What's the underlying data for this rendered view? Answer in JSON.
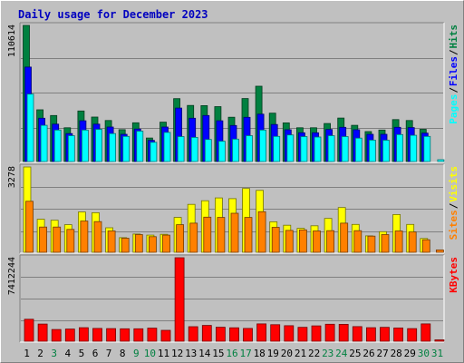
{
  "chart_title": "Daily usage for December 2023",
  "chart_data": [
    {
      "type": "bar",
      "name": "hits-files-pages",
      "max_label": "110614",
      "ylim": [
        0,
        110614
      ],
      "grid": true,
      "legend": [
        "Pages",
        "Files",
        "Hits"
      ],
      "categories": [
        "1",
        "2",
        "3",
        "4",
        "5",
        "6",
        "7",
        "8",
        "9",
        "10",
        "11",
        "12",
        "13",
        "14",
        "15",
        "16",
        "17",
        "18",
        "19",
        "20",
        "21",
        "22",
        "23",
        "24",
        "25",
        "26",
        "27",
        "28",
        "29",
        "30",
        "31"
      ],
      "series": [
        {
          "name": "Hits",
          "color": "#008040",
          "values": [
            110614,
            42000,
            37400,
            27400,
            41100,
            36100,
            33300,
            25900,
            31500,
            19100,
            32000,
            51100,
            45600,
            45400,
            44600,
            36000,
            51200,
            61200,
            39300,
            31400,
            27400,
            27400,
            30900,
            35300,
            29400,
            24300,
            25600,
            34100,
            33300,
            26200,
            0
          ]
        },
        {
          "name": "Files",
          "color": "#0000ff",
          "values": [
            76800,
            35200,
            30400,
            22700,
            33100,
            30400,
            28000,
            22100,
            26400,
            17200,
            28000,
            43400,
            35200,
            37400,
            33100,
            29300,
            35900,
            38500,
            30100,
            25800,
            23400,
            23400,
            26000,
            27800,
            25800,
            22100,
            22100,
            27800,
            27600,
            23100,
            0
          ]
        },
        {
          "name": "Pages",
          "color": "#00ffff",
          "values": [
            54800,
            29400,
            25600,
            21000,
            25600,
            26200,
            22700,
            20400,
            24700,
            15600,
            23700,
            20300,
            19600,
            17900,
            16500,
            18200,
            21000,
            25600,
            20400,
            21600,
            20300,
            19900,
            21000,
            20300,
            19000,
            17400,
            17300,
            21900,
            21300,
            20400,
            1500
          ]
        }
      ]
    },
    {
      "type": "bar",
      "name": "visits-sites",
      "max_label": "3278",
      "ylim": [
        0,
        3278
      ],
      "grid": true,
      "legend": [
        "Sites",
        "Visits"
      ],
      "categories": [
        "1",
        "2",
        "3",
        "4",
        "5",
        "6",
        "7",
        "8",
        "9",
        "10",
        "11",
        "12",
        "13",
        "14",
        "15",
        "16",
        "17",
        "18",
        "19",
        "20",
        "21",
        "22",
        "23",
        "24",
        "25",
        "26",
        "27",
        "28",
        "29",
        "30",
        "31"
      ],
      "series": [
        {
          "name": "Visits",
          "color": "#ffff00",
          "values": [
            3278,
            1270,
            1230,
            1060,
            1550,
            1520,
            940,
            560,
            700,
            660,
            690,
            1340,
            1840,
            1980,
            2090,
            2060,
            2450,
            2380,
            1170,
            1040,
            920,
            1020,
            1300,
            1720,
            1070,
            630,
            790,
            1450,
            1070,
            530,
            0
          ]
        },
        {
          "name": "Sites",
          "color": "#ff8000",
          "values": [
            1960,
            970,
            970,
            880,
            1200,
            1180,
            820,
            540,
            680,
            600,
            660,
            1060,
            1120,
            1350,
            1340,
            1500,
            1340,
            1560,
            960,
            840,
            860,
            820,
            830,
            1120,
            830,
            620,
            680,
            820,
            780,
            480,
            90
          ]
        }
      ]
    },
    {
      "type": "bar",
      "name": "kbytes",
      "max_label": "7412244",
      "ylim": [
        0,
        7412244
      ],
      "grid": true,
      "legend": [
        "KBytes"
      ],
      "categories": [
        "1",
        "2",
        "3",
        "4",
        "5",
        "6",
        "7",
        "8",
        "9",
        "10",
        "11",
        "12",
        "13",
        "14",
        "15",
        "16",
        "17",
        "18",
        "19",
        "20",
        "21",
        "22",
        "23",
        "24",
        "25",
        "26",
        "27",
        "28",
        "29",
        "30",
        "31"
      ],
      "series": [
        {
          "name": "KBytes",
          "color": "#ff0000",
          "values": [
            1950000,
            1520000,
            1040000,
            1080000,
            1200000,
            1140000,
            1120000,
            1100000,
            1100000,
            1160000,
            970000,
            7412244,
            1290000,
            1400000,
            1240000,
            1190000,
            1140000,
            1540000,
            1470000,
            1380000,
            1230000,
            1360000,
            1510000,
            1500000,
            1300000,
            1200000,
            1230000,
            1180000,
            1120000,
            1540000,
            120000
          ]
        }
      ]
    }
  ],
  "x_labels": [
    {
      "text": "1",
      "color": "#000000"
    },
    {
      "text": "2",
      "color": "#000000"
    },
    {
      "text": "3",
      "color": "#008040"
    },
    {
      "text": "4",
      "color": "#000000"
    },
    {
      "text": "5",
      "color": "#000000"
    },
    {
      "text": "6",
      "color": "#000000"
    },
    {
      "text": "7",
      "color": "#000000"
    },
    {
      "text": "8",
      "color": "#000000"
    },
    {
      "text": "9",
      "color": "#008040"
    },
    {
      "text": "10",
      "color": "#008040"
    },
    {
      "text": "11",
      "color": "#000000"
    },
    {
      "text": "12",
      "color": "#000000"
    },
    {
      "text": "13",
      "color": "#000000"
    },
    {
      "text": "14",
      "color": "#000000"
    },
    {
      "text": "15",
      "color": "#000000"
    },
    {
      "text": "16",
      "color": "#008040"
    },
    {
      "text": "17",
      "color": "#008040"
    },
    {
      "text": "18",
      "color": "#000000"
    },
    {
      "text": "19",
      "color": "#000000"
    },
    {
      "text": "20",
      "color": "#000000"
    },
    {
      "text": "21",
      "color": "#000000"
    },
    {
      "text": "22",
      "color": "#000000"
    },
    {
      "text": "23",
      "color": "#008040"
    },
    {
      "text": "24",
      "color": "#008040"
    },
    {
      "text": "25",
      "color": "#000000"
    },
    {
      "text": "26",
      "color": "#000000"
    },
    {
      "text": "27",
      "color": "#000000"
    },
    {
      "text": "28",
      "color": "#000000"
    },
    {
      "text": "29",
      "color": "#000000"
    },
    {
      "text": "30",
      "color": "#008040"
    },
    {
      "text": "31",
      "color": "#008040"
    }
  ],
  "legend_separator": "/",
  "legend_separator_color": "#000000"
}
